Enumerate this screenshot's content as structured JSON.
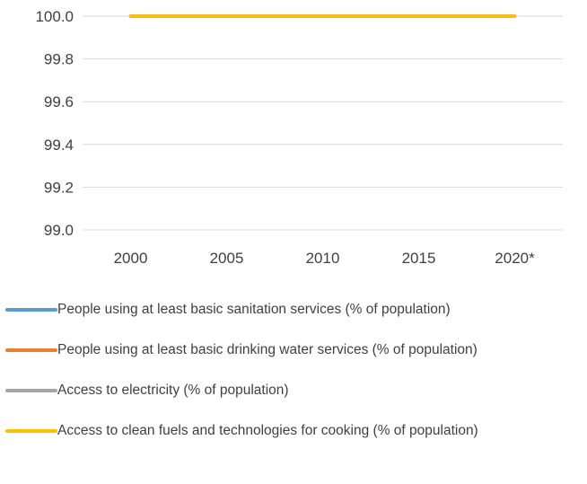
{
  "chart_data": {
    "type": "line",
    "categories": [
      "2000",
      "2005",
      "2010",
      "2015",
      "2020*"
    ],
    "yticks": [
      "100.0",
      "99.8",
      "99.6",
      "99.4",
      "99.2",
      "99.0"
    ],
    "ylim": [
      99.0,
      100.0
    ],
    "grid": true,
    "legend_position": "bottom",
    "series": [
      {
        "name": "People using at least basic sanitation services (% of population)",
        "color": "#5B9BD5",
        "values": [
          100,
          100,
          100,
          100,
          100
        ]
      },
      {
        "name": "People using at least basic drinking water services (% of population)",
        "color": "#ED7D31",
        "values": [
          100,
          100,
          100,
          100,
          100
        ]
      },
      {
        "name": "Access to electricity (% of population)",
        "color": "#A5A5A5",
        "values": [
          100,
          100,
          100,
          100,
          100
        ]
      },
      {
        "name": "Access to clean fuels and technologies for cooking (% of population)",
        "color": "#FFC000",
        "values": [
          100,
          100,
          100,
          100,
          100
        ]
      }
    ]
  }
}
